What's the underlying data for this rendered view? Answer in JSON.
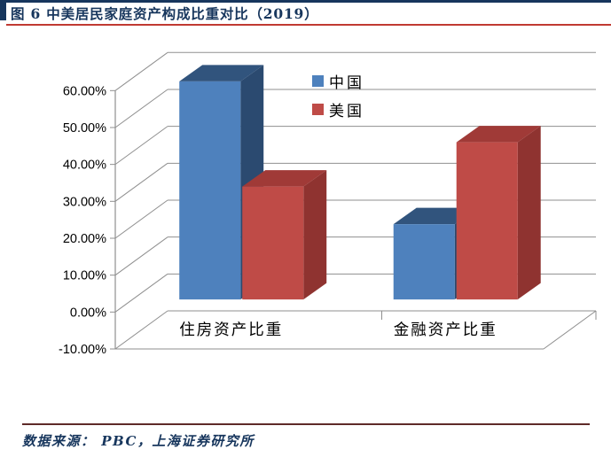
{
  "header": {
    "title": "图 6 中美居民家庭资产构成比重对比（2019）"
  },
  "footer": {
    "source": "数据来源：  PBC，上海证券研究所"
  },
  "chart_data": {
    "type": "bar",
    "projection": "3d-clustered-column",
    "title": "",
    "xlabel": "",
    "ylabel": "",
    "categories": [
      "住房资产比重",
      "金融资产比重"
    ],
    "series": [
      {
        "name": "中国",
        "values": [
          59.1,
          20.4
        ]
      },
      {
        "name": "美国",
        "values": [
          30.6,
          42.6
        ]
      }
    ],
    "ylim": [
      -10,
      60
    ],
    "ytick_step": 10,
    "ytick_labels": [
      "60.00%",
      "50.00%",
      "40.00%",
      "30.00%",
      "20.00%",
      "10.00%",
      "0.00%",
      "-10.00%"
    ],
    "grid": true,
    "legend_position": "inside-top-right"
  },
  "palette": {
    "navy": "#17365D",
    "title_rule": "#C03A32",
    "source_rule": "#5E2A28",
    "grid": "#8F8F8F",
    "axis_text": "#000000",
    "series_cn": {
      "front": "#4E81BD",
      "top": "#31547D",
      "side": "#2B4A70"
    },
    "series_us": {
      "front": "#BF4B47",
      "top": "#A03A37",
      "side": "#8F3330"
    }
  }
}
